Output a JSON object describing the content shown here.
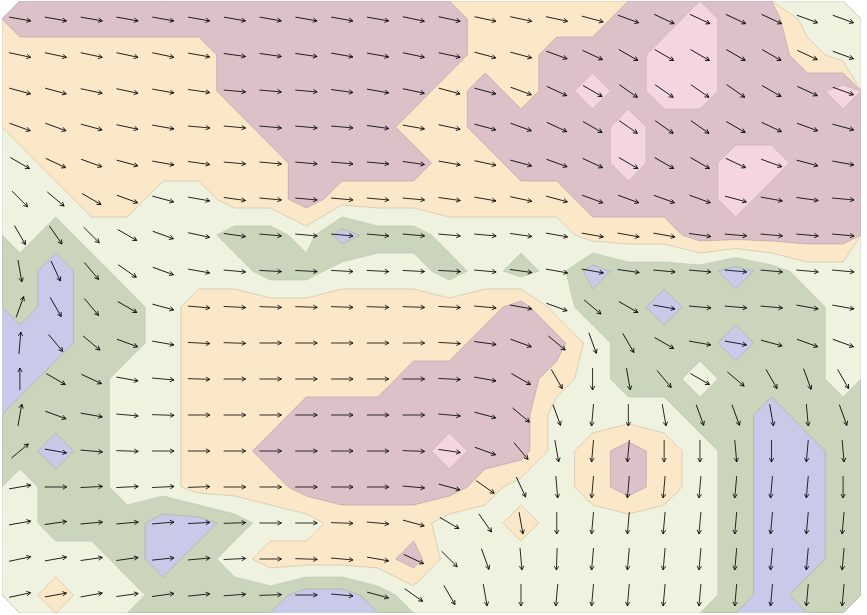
{
  "chart_data": {
    "type": "contour_quiver",
    "tick_labels": false,
    "levels": [
      0,
      1.5,
      2.5,
      3.5,
      4.5,
      5.5,
      6.5
    ],
    "colors": [
      "#c9c9e9",
      "#cbd5bb",
      "#eef2de",
      "#fbe8c8",
      "#dcc1c9",
      "#f5d6de",
      "#ecc9ec"
    ],
    "field": [
      [
        5,
        5,
        5,
        5,
        5,
        5,
        5,
        5,
        5,
        5,
        5,
        5,
        5,
        4,
        4,
        4,
        4,
        5,
        5,
        6,
        5,
        5,
        3,
        3
      ],
      [
        4,
        4,
        4,
        4,
        4,
        4,
        5,
        5,
        5,
        5,
        5,
        5,
        5,
        4,
        4,
        5,
        5,
        5,
        6,
        6,
        5,
        5,
        4,
        3
      ],
      [
        4,
        4,
        4,
        4,
        4,
        4,
        5,
        5,
        5,
        5,
        5,
        5,
        4,
        5,
        4,
        5,
        6,
        5,
        6,
        6,
        5,
        5,
        5,
        6
      ],
      [
        4,
        4,
        4,
        4,
        4,
        4,
        4,
        5,
        5,
        5,
        5,
        4,
        4,
        5,
        5,
        5,
        5,
        6,
        5,
        5,
        5,
        5,
        5,
        5
      ],
      [
        3,
        4,
        4,
        4,
        4,
        4,
        4,
        4,
        5,
        5,
        5,
        5,
        4,
        4,
        5,
        5,
        5,
        6,
        5,
        5,
        6,
        6,
        5,
        5
      ],
      [
        3,
        3,
        4,
        4,
        3,
        3,
        4,
        4,
        5,
        4,
        4,
        4,
        4,
        4,
        4,
        4,
        5,
        5,
        5,
        5,
        6,
        5,
        5,
        5
      ],
      [
        3,
        2,
        3,
        3,
        3,
        3,
        2,
        2,
        3,
        1,
        2,
        2,
        3,
        3,
        3,
        3,
        4,
        4,
        4,
        5,
        5,
        5,
        5,
        5
      ],
      [
        2,
        1,
        2,
        3,
        3,
        3,
        3,
        2,
        2,
        3,
        3,
        3,
        2,
        3,
        2,
        3,
        1,
        2,
        2,
        2,
        1,
        2,
        3,
        3
      ],
      [
        2,
        1,
        2,
        2,
        3,
        4,
        4,
        4,
        4,
        4,
        4,
        4,
        4,
        4,
        5,
        3,
        2,
        2,
        1,
        2,
        2,
        2,
        2,
        3
      ],
      [
        1,
        1,
        2,
        2,
        3,
        4,
        4,
        4,
        4,
        4,
        4,
        4,
        4,
        5,
        5,
        5,
        3,
        2,
        2,
        2,
        1,
        2,
        2,
        3
      ],
      [
        1,
        2,
        2,
        3,
        3,
        4,
        4,
        4,
        4,
        4,
        4,
        5,
        5,
        5,
        5,
        4,
        3,
        2,
        2,
        3,
        2,
        2,
        2,
        3
      ],
      [
        2,
        2,
        2,
        3,
        3,
        4,
        4,
        4,
        5,
        5,
        5,
        5,
        5,
        5,
        5,
        3,
        3,
        3,
        3,
        2,
        2,
        1,
        2,
        2
      ],
      [
        2,
        1,
        2,
        3,
        3,
        4,
        4,
        5,
        5,
        5,
        5,
        5,
        6,
        5,
        5,
        3,
        4,
        5,
        4,
        3,
        2,
        1,
        1,
        2
      ],
      [
        3,
        2,
        2,
        3,
        3,
        4,
        4,
        4,
        5,
        5,
        5,
        5,
        5,
        4,
        3,
        3,
        4,
        5,
        4,
        3,
        2,
        1,
        1,
        2
      ],
      [
        3,
        2,
        2,
        2,
        1,
        1,
        2,
        3,
        3,
        4,
        4,
        4,
        3,
        3,
        4,
        3,
        3,
        3,
        3,
        3,
        2,
        1,
        1,
        2
      ],
      [
        3,
        3,
        3,
        2,
        1,
        2,
        3,
        4,
        4,
        4,
        4,
        5,
        3,
        3,
        3,
        3,
        3,
        3,
        3,
        3,
        2,
        1,
        1,
        2
      ],
      [
        3,
        4,
        3,
        3,
        2,
        2,
        2,
        2,
        1,
        1,
        2,
        3,
        3,
        3,
        3,
        3,
        3,
        3,
        3,
        3,
        2,
        1,
        2,
        2
      ]
    ],
    "angles": [
      [
        10,
        10,
        10,
        10,
        10,
        10,
        10,
        10,
        10,
        10,
        10,
        12,
        12,
        12,
        12,
        12,
        15,
        20,
        25,
        25,
        25,
        25,
        20,
        20
      ],
      [
        12,
        12,
        12,
        12,
        12,
        10,
        8,
        8,
        8,
        10,
        10,
        12,
        12,
        15,
        15,
        20,
        25,
        30,
        30,
        30,
        30,
        30,
        25,
        20
      ],
      [
        15,
        15,
        12,
        12,
        10,
        8,
        5,
        5,
        5,
        8,
        10,
        12,
        15,
        15,
        20,
        25,
        30,
        35,
        35,
        35,
        35,
        30,
        25,
        20
      ],
      [
        20,
        20,
        15,
        12,
        10,
        5,
        5,
        5,
        5,
        5,
        8,
        10,
        12,
        15,
        20,
        25,
        30,
        35,
        35,
        35,
        30,
        25,
        20,
        15
      ],
      [
        30,
        25,
        20,
        15,
        10,
        8,
        5,
        5,
        5,
        5,
        5,
        8,
        10,
        12,
        15,
        20,
        25,
        30,
        30,
        30,
        25,
        20,
        15,
        10
      ],
      [
        45,
        40,
        30,
        20,
        15,
        10,
        8,
        5,
        5,
        5,
        5,
        5,
        8,
        10,
        12,
        15,
        20,
        20,
        20,
        20,
        15,
        10,
        8,
        5
      ],
      [
        60,
        55,
        45,
        30,
        20,
        12,
        8,
        5,
        5,
        5,
        5,
        5,
        5,
        5,
        8,
        10,
        10,
        10,
        10,
        8,
        5,
        5,
        5,
        5
      ],
      [
        80,
        65,
        50,
        35,
        20,
        10,
        5,
        3,
        3,
        3,
        3,
        3,
        3,
        5,
        8,
        10,
        10,
        8,
        5,
        5,
        5,
        5,
        5,
        5
      ],
      [
        -70,
        60,
        50,
        30,
        15,
        5,
        3,
        2,
        2,
        2,
        2,
        2,
        3,
        5,
        10,
        20,
        40,
        30,
        10,
        5,
        5,
        5,
        10,
        10
      ],
      [
        -85,
        50,
        40,
        20,
        10,
        3,
        2,
        0,
        0,
        0,
        0,
        0,
        3,
        8,
        20,
        40,
        70,
        60,
        30,
        10,
        10,
        15,
        20,
        20
      ],
      [
        -90,
        30,
        25,
        10,
        5,
        2,
        0,
        0,
        0,
        0,
        0,
        0,
        3,
        10,
        30,
        60,
        90,
        80,
        50,
        30,
        40,
        60,
        70,
        60
      ],
      [
        -80,
        20,
        10,
        5,
        2,
        0,
        0,
        0,
        0,
        0,
        0,
        0,
        5,
        15,
        40,
        70,
        95,
        90,
        80,
        70,
        70,
        80,
        85,
        70
      ],
      [
        -40,
        10,
        5,
        2,
        0,
        0,
        0,
        0,
        0,
        0,
        0,
        2,
        8,
        20,
        50,
        80,
        95,
        95,
        90,
        90,
        85,
        90,
        95,
        85
      ],
      [
        -10,
        0,
        -3,
        -3,
        -3,
        -2,
        0,
        0,
        0,
        0,
        0,
        5,
        15,
        35,
        65,
        85,
        95,
        95,
        95,
        95,
        95,
        95,
        95,
        90
      ],
      [
        -10,
        -8,
        -5,
        -5,
        -5,
        -3,
        -2,
        0,
        0,
        2,
        5,
        15,
        30,
        55,
        80,
        90,
        95,
        95,
        95,
        95,
        95,
        95,
        95,
        95
      ],
      [
        -12,
        -10,
        -8,
        -8,
        -6,
        -5,
        -3,
        0,
        2,
        5,
        10,
        25,
        45,
        70,
        85,
        92,
        95,
        95,
        95,
        95,
        95,
        95,
        95,
        95
      ],
      [
        -12,
        -10,
        -10,
        -8,
        -8,
        -6,
        -4,
        -2,
        0,
        5,
        15,
        35,
        60,
        80,
        90,
        95,
        95,
        95,
        95,
        95,
        95,
        95,
        95,
        95
      ]
    ]
  }
}
